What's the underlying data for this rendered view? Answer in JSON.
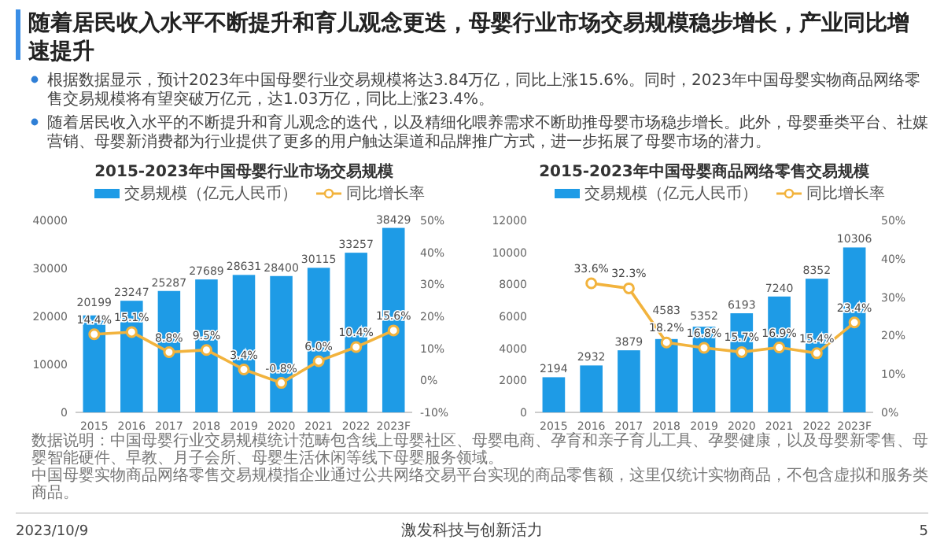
{
  "chart_data": [
    {
      "type": "other",
      "title": "随着居民收入水平不断提升和育儿观念更迭，母婴行业市场交易规模稳步增长，产业同比增速提升",
      "annotations": [
        "根据数据显示，预计2023年中国母婴行业交易规模将达3.84万亿，同比上涨15.6%。同时，2023年中国母婴实物商品网络零售交易规模将有望突破万亿元，达1.03万亿，同比上涨23.4%。",
        "随着居民收入水平的不断提升和育儿观念的迭代，以及精细化喂养需求不断助推母婴市场稳步增长。此外，母婴垂类平台、社媒营销、母婴新消费都为行业提供了更多的用户触达渠道和品牌推广方式，进一步拓展了母婴市场的潜力。",
        "数据说明：中国母婴行业交易规模统计范畴包含线上母婴社区、母婴电商、孕育和亲子育儿工具、孕婴健康，以及母婴新零售、母婴智能硬件、早教、月子会所、母婴生活休闲等线下母婴服务领域。",
        "中国母婴实物商品网络零售交易规模指企业通过公共网络交易平台实现的商品零售额，这里仅统计实物商品，不包含虚拟和服务类商品。",
        "2023/10/9",
        "激发科技与创新活力",
        "5"
      ]
    },
    {
      "type": "bar",
      "title": "2015-2023年中国母婴行业市场交易规模",
      "categories": [
        "2015",
        "2016",
        "2017",
        "2018",
        "2019",
        "2020",
        "2021",
        "2022",
        "2023F"
      ],
      "series": [
        {
          "name": "交易规模（亿元人民币）",
          "color": "#1e9be6",
          "values": [
            20199,
            23247,
            25287,
            27689,
            28631,
            28400,
            30115,
            33257,
            38429
          ]
        },
        {
          "name": "同比增长率",
          "type": "line",
          "axis": "y2",
          "color": "#f2b33d",
          "values": [
            14.4,
            15.1,
            8.8,
            9.5,
            3.4,
            -0.8,
            6.0,
            10.4,
            15.6
          ],
          "value_labels": [
            "14.4%",
            "15.1%",
            "8.8%",
            "9.5%",
            "3.4%",
            "-0.8%",
            "6.0%",
            "10.4%",
            "15.6%"
          ]
        }
      ],
      "ylim": [
        0,
        40000
      ],
      "yticks": [
        0,
        10000,
        20000,
        30000,
        40000
      ],
      "y2lim": [
        -10,
        50
      ],
      "y2ticks": [
        {
          "value": -10,
          "label": "-10%"
        },
        {
          "value": 0,
          "label": "0%"
        },
        {
          "value": 10,
          "label": "10%"
        },
        {
          "value": 20,
          "label": "20%"
        },
        {
          "value": 30,
          "label": "30%"
        },
        {
          "value": 40,
          "label": "40%"
        },
        {
          "value": 50,
          "label": "50%"
        }
      ],
      "data_labels": true,
      "legend": "top",
      "marker": "circle",
      "grid": false
    },
    {
      "type": "bar",
      "title": "2015-2023年中国母婴商品网络零售交易规模",
      "categories": [
        "2015",
        "2016",
        "2017",
        "2018",
        "2019",
        "2020",
        "2021",
        "2022",
        "2023F"
      ],
      "series": [
        {
          "name": "交易规模（亿元人民币）",
          "color": "#1e9be6",
          "values": [
            2194,
            2932,
            3879,
            4583,
            5352,
            6193,
            7240,
            8352,
            10306
          ]
        },
        {
          "name": "同比增长率",
          "type": "line",
          "axis": "y2",
          "color": "#f2b33d",
          "values": [
            null,
            33.6,
            32.3,
            18.2,
            16.8,
            15.7,
            16.9,
            15.4,
            23.4
          ],
          "value_labels": [
            null,
            "33.6%",
            "32.3%",
            "18.2%",
            "16.8%",
            "15.7%",
            "16.9%",
            "15.4%",
            "23.4%"
          ]
        }
      ],
      "ylim": [
        0,
        12000
      ],
      "yticks": [
        0,
        2000,
        4000,
        6000,
        8000,
        10000,
        12000
      ],
      "y2lim": [
        0,
        50
      ],
      "y2ticks": [
        {
          "value": 0,
          "label": "0%"
        },
        {
          "value": 10,
          "label": "10%"
        },
        {
          "value": 20,
          "label": "20%"
        },
        {
          "value": 30,
          "label": "30%"
        },
        {
          "value": 40,
          "label": "40%"
        },
        {
          "value": 50,
          "label": "50%"
        }
      ],
      "data_labels": true,
      "legend": "top",
      "marker": "circle",
      "grid": false
    }
  ]
}
